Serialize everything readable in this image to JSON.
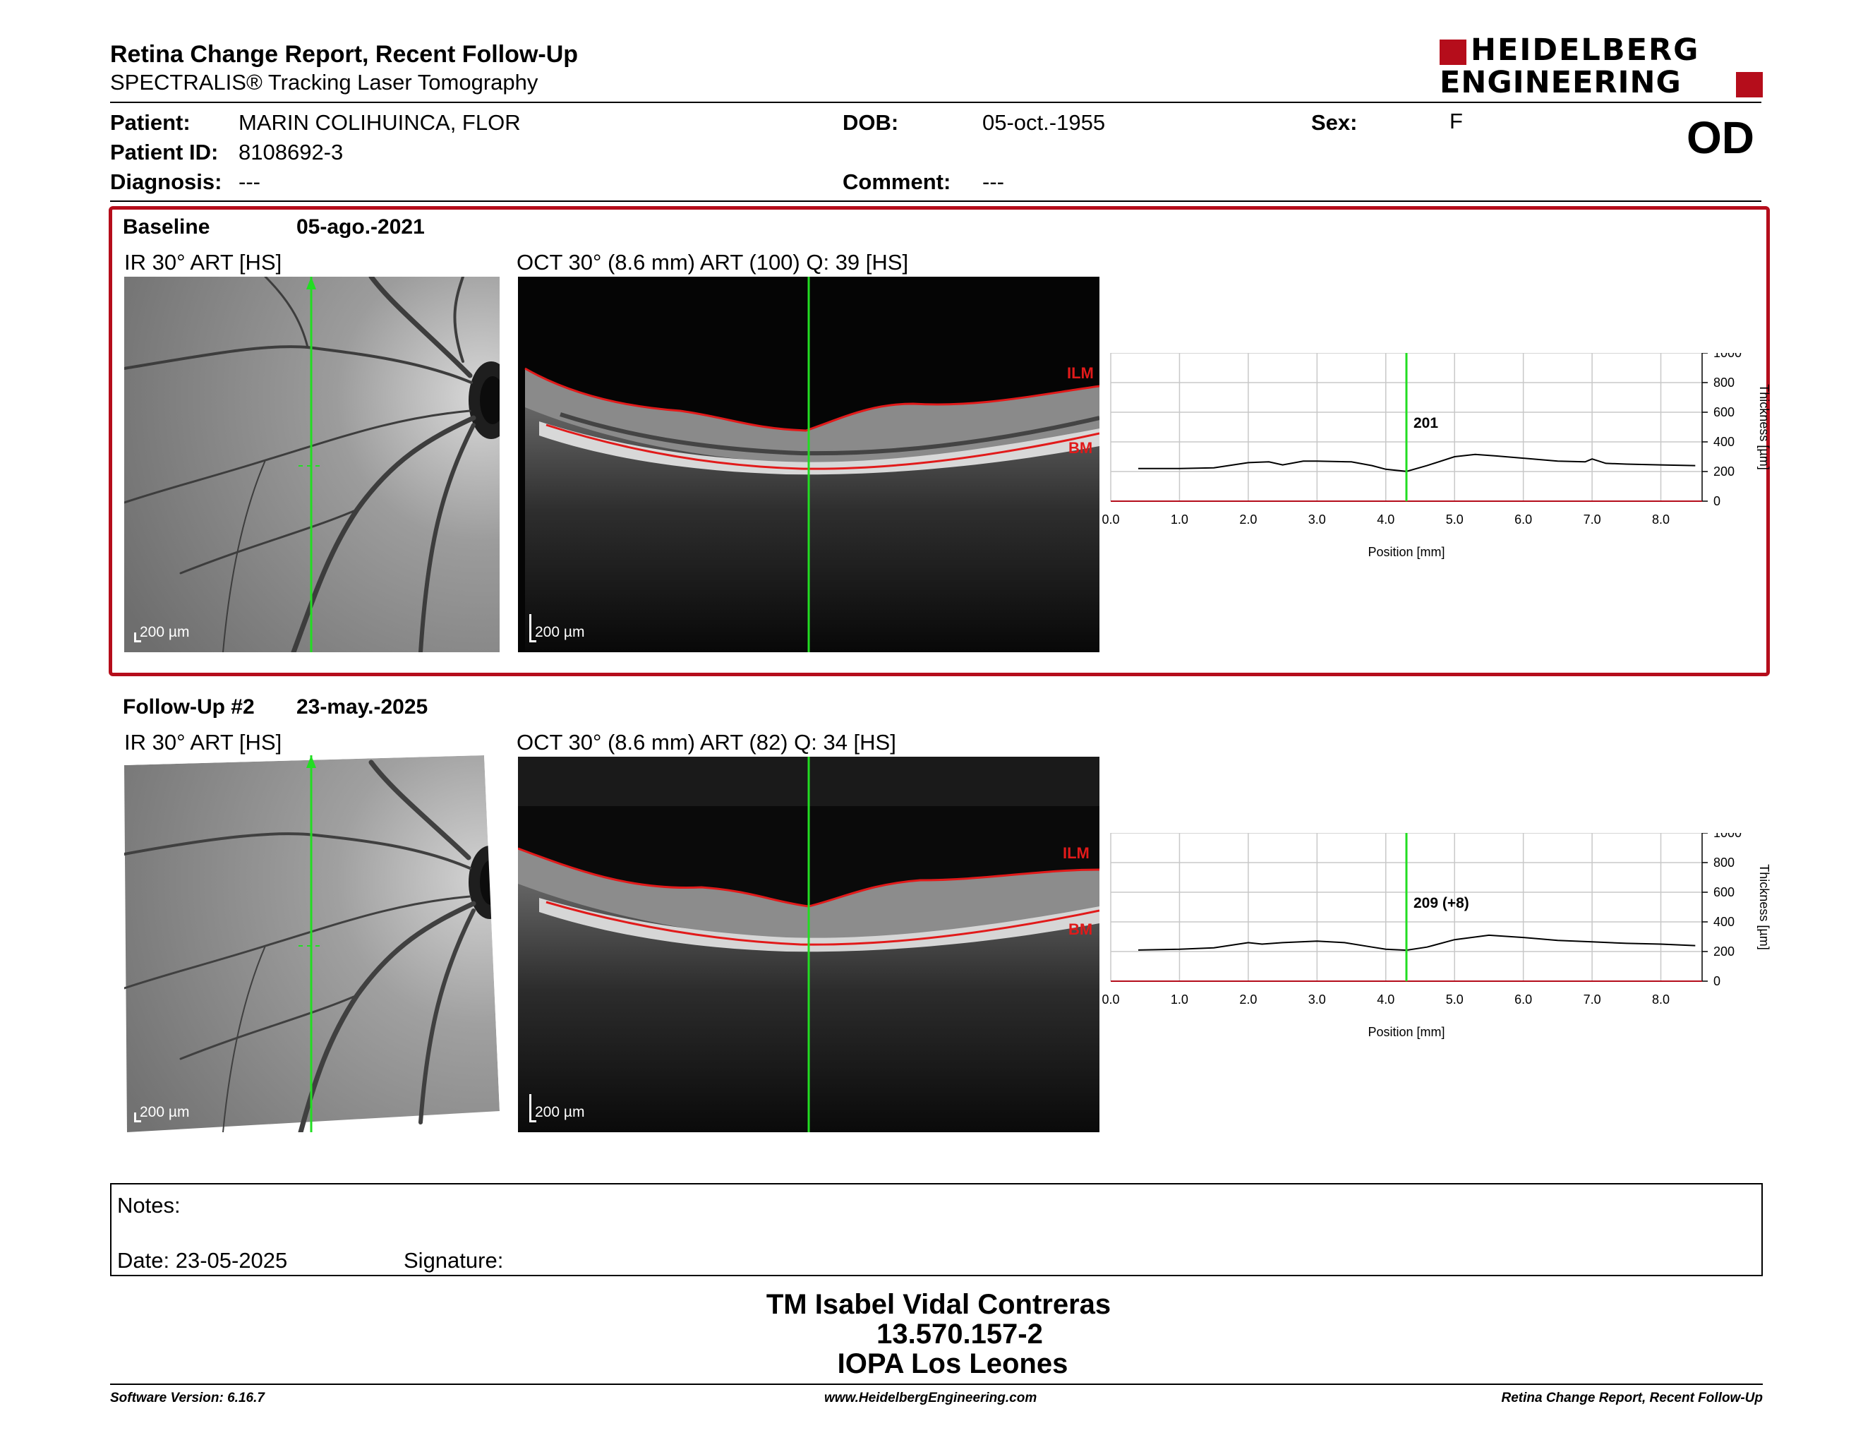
{
  "header": {
    "title": "Retina Change Report, Recent Follow-Up",
    "subtitle": "SPECTRALIS® Tracking Laser Tomography",
    "logo_line1": "HEIDELBERG",
    "logo_line2": "ENGINEERING",
    "eye": "OD"
  },
  "patient": {
    "patient_label": "Patient:",
    "patient_value": "MARIN COLIHUINCA, FLOR",
    "id_label": "Patient ID:",
    "id_value": "8108692-3",
    "diagnosis_label": "Diagnosis:",
    "diagnosis_value": "---",
    "dob_label": "DOB:",
    "dob_value": "05-oct.-1955",
    "comment_label": "Comment:",
    "comment_value": "---",
    "sex_label": "Sex:",
    "sex_value": "F"
  },
  "baseline": {
    "label": "Baseline",
    "date": "05-ago.-2021",
    "ir_caption": "IR 30° ART [HS]",
    "oct_caption": "OCT 30° (8.6 mm) ART (100) Q: 39 [HS]",
    "scale": "200 µm",
    "ilm": "ILM",
    "bm": "BM"
  },
  "followup": {
    "label": "Follow-Up #2",
    "date": "23-may.-2025",
    "ir_caption": "IR 30° ART [HS]",
    "oct_caption": "OCT 30° (8.6 mm) ART (82) Q: 34 [HS]",
    "scale": "200 µm",
    "ilm": "ILM",
    "bm": "BM"
  },
  "chart_data": [
    {
      "type": "line",
      "xlabel": "Position [mm]",
      "ylabel": "Thickness [µm]",
      "xlim": [
        0,
        8.6
      ],
      "ylim": [
        0,
        1000
      ],
      "xticks": [
        "0.0",
        "1.0",
        "2.0",
        "3.0",
        "4.0",
        "5.0",
        "6.0",
        "7.0",
        "8.0"
      ],
      "yticks": [
        "0",
        "200",
        "400",
        "600",
        "800",
        "1000"
      ],
      "cursor_x": 4.3,
      "cursor_label": "201",
      "series": [
        {
          "x": [
            0.4,
            1.0,
            1.5,
            2.0,
            2.3,
            2.5,
            2.8,
            3.0,
            3.5,
            3.8,
            4.0,
            4.3,
            4.6,
            5.0,
            5.3,
            5.6,
            6.0,
            6.5,
            6.9,
            7.0,
            7.2,
            7.5,
            8.0,
            8.5
          ],
          "values": [
            220,
            220,
            225,
            260,
            265,
            245,
            270,
            270,
            265,
            240,
            215,
            201,
            240,
            300,
            315,
            305,
            290,
            270,
            265,
            285,
            255,
            250,
            245,
            240
          ]
        }
      ],
      "colors": {
        "line": "#000000",
        "cursor": "#22dd22",
        "baseline": "#b50d1b"
      }
    },
    {
      "type": "line",
      "xlabel": "Position [mm]",
      "ylabel": "Thickness [µm]",
      "xlim": [
        0,
        8.6
      ],
      "ylim": [
        0,
        1000
      ],
      "xticks": [
        "0.0",
        "1.0",
        "2.0",
        "3.0",
        "4.0",
        "5.0",
        "6.0",
        "7.0",
        "8.0"
      ],
      "yticks": [
        "0",
        "200",
        "400",
        "600",
        "800",
        "1000"
      ],
      "cursor_x": 4.3,
      "cursor_label": "209 (+8)",
      "series": [
        {
          "x": [
            0.4,
            1.0,
            1.5,
            2.0,
            2.2,
            2.5,
            3.0,
            3.4,
            3.8,
            4.0,
            4.3,
            4.6,
            5.0,
            5.5,
            6.0,
            6.5,
            7.0,
            7.5,
            8.0,
            8.5
          ],
          "values": [
            210,
            215,
            225,
            260,
            250,
            260,
            270,
            260,
            230,
            215,
            209,
            230,
            280,
            310,
            295,
            275,
            265,
            255,
            250,
            240
          ]
        }
      ],
      "colors": {
        "line": "#000000",
        "cursor": "#22dd22",
        "baseline": "#b50d1b"
      }
    }
  ],
  "notes": {
    "notes_label": "Notes:",
    "date_label": "Date: 23-05-2025",
    "signature_label": "Signature:"
  },
  "signer": {
    "name": "TM Isabel Vidal Contreras",
    "rut": "13.570.157-2",
    "institution": "IOPA Los Leones"
  },
  "footer": {
    "version": "Software Version: 6.16.7",
    "website": "www.HeidelbergEngineering.com",
    "report": "Retina Change Report, Recent Follow-Up"
  }
}
